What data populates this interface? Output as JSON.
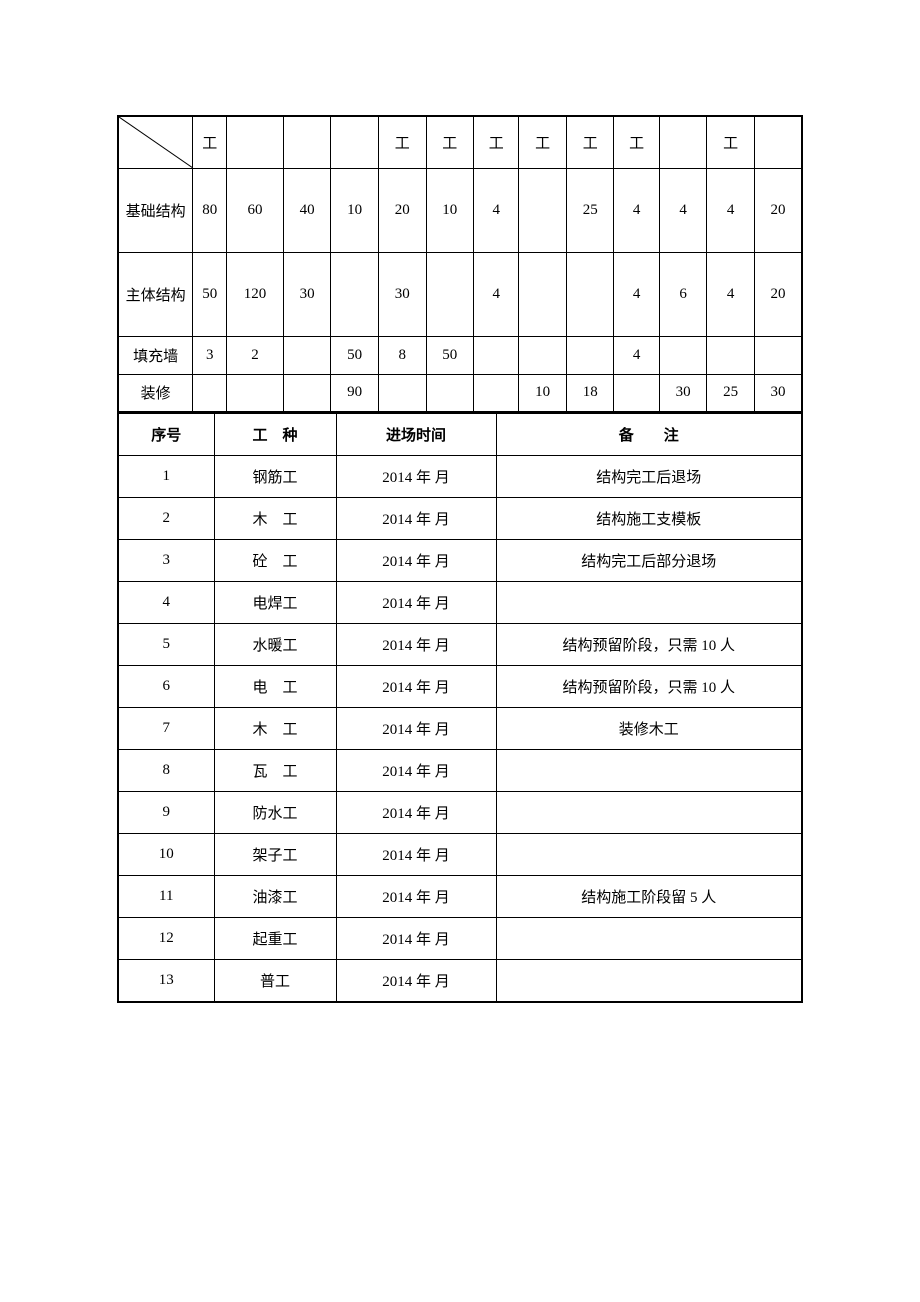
{
  "table1": {
    "header_char": "工",
    "header_flags": [
      false,
      true,
      false,
      false,
      false,
      true,
      true,
      true,
      true,
      true,
      true,
      false,
      true,
      false
    ],
    "rows": [
      {
        "label": "基础结构",
        "cells": [
          "80",
          "60",
          "40",
          "10",
          "20",
          "10",
          "4",
          "",
          "25",
          "4",
          "4",
          "4",
          "20"
        ],
        "double": true
      },
      {
        "label": "主体结构",
        "cells": [
          "50",
          "120",
          "30",
          "",
          "30",
          "",
          "4",
          "",
          "",
          "4",
          "6",
          "4",
          "20"
        ],
        "double": true
      },
      {
        "label": "填充墙",
        "cells": [
          "3",
          "2",
          "",
          "50",
          "8",
          "50",
          "",
          "",
          "",
          "4",
          "",
          "",
          ""
        ],
        "double": false
      },
      {
        "label": "装修",
        "cells": [
          "",
          "",
          "",
          "90",
          "",
          "",
          "",
          "10",
          "18",
          "",
          "30",
          "25",
          "30"
        ],
        "double": false
      }
    ],
    "col_widths": [
      "c0",
      "c1",
      "c2",
      "c3",
      "c4",
      "c5",
      "c6",
      "c7",
      "c8",
      "c9",
      "c10",
      "c11",
      "c12",
      "c13"
    ]
  },
  "table2": {
    "headers": [
      "序号",
      "工　种",
      "进场时间",
      "备　　注"
    ],
    "rows": [
      {
        "seq": "1",
        "type": "钢筋工",
        "time": "2014 年 月",
        "note": "结构完工后退场"
      },
      {
        "seq": "2",
        "type": "木　工",
        "time": "2014 年 月",
        "note": "结构施工支模板"
      },
      {
        "seq": "3",
        "type": "砼　工",
        "time": "2014 年 月",
        "note": "结构完工后部分退场"
      },
      {
        "seq": "4",
        "type": "电焊工",
        "time": "2014 年 月",
        "note": ""
      },
      {
        "seq": "5",
        "type": "水暖工",
        "time": "2014 年 月",
        "note": "结构预留阶段，只需 10 人"
      },
      {
        "seq": "6",
        "type": "电　工",
        "time": "2014 年 月",
        "note": "结构预留阶段，只需 10 人"
      },
      {
        "seq": "7",
        "type": "木　工",
        "time": "2014 年 月",
        "note": "装修木工"
      },
      {
        "seq": "8",
        "type": "瓦　工",
        "time": "2014 年 月",
        "note": ""
      },
      {
        "seq": "9",
        "type": "防水工",
        "time": "2014 年 月",
        "note": ""
      },
      {
        "seq": "10",
        "type": "架子工",
        "time": "2014 年 月",
        "note": ""
      },
      {
        "seq": "11",
        "type": "油漆工",
        "time": "2014 年 月",
        "note": "结构施工阶段留 5 人"
      },
      {
        "seq": "12",
        "type": "起重工",
        "time": "2014 年 月",
        "note": ""
      },
      {
        "seq": "13",
        "type": "普工",
        "time": "2014 年 月",
        "note": ""
      }
    ]
  },
  "style": {
    "font_family": "SimSun",
    "font_size_pt": 15,
    "border_color": "#000000",
    "background_color": "#ffffff",
    "text_color": "#000000",
    "outer_border_width": 2,
    "inner_border_width": 1
  }
}
